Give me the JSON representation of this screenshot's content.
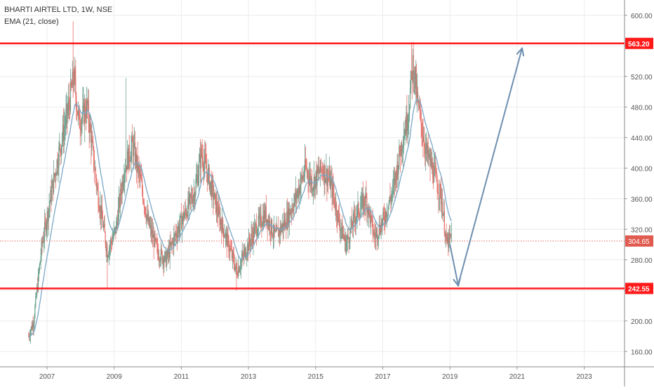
{
  "legend": {
    "title": "BHARTI AIRTEL LTD, 1W, NSE",
    "indicator": "EMA (21, close)"
  },
  "colors": {
    "up": "#6b9e8c",
    "down": "#e7706a",
    "ema": "#7aa7c7",
    "level": "#ff1a1a",
    "arrow": "#6f8fb0",
    "price_line": "#e05a4f",
    "axis_text": "#555555",
    "grid": "#ececec"
  },
  "chart_data": {
    "type": "candlestick",
    "title": "BHARTI AIRTEL LTD, 1W, NSE",
    "indicator": "EMA (21, close)",
    "y_axis": {
      "position": "right",
      "ylim": [
        140,
        620
      ],
      "ticks": [
        "600.00",
        "560.00",
        "520.00",
        "480.00",
        "440.00",
        "400.00",
        "360.00",
        "320.00",
        "280.00",
        "240.00",
        "200.00",
        "160.00"
      ]
    },
    "x_axis": {
      "xlim": [
        2005.6,
        2024.2
      ],
      "ticks": [
        "2007",
        "2009",
        "2011",
        "2013",
        "2015",
        "2017",
        "2019",
        "2021",
        "2023"
      ]
    },
    "grid": true,
    "series_anchor_points": [
      [
        2006.45,
        180
      ],
      [
        2006.6,
        200
      ],
      [
        2006.85,
        300
      ],
      [
        2007.1,
        360
      ],
      [
        2007.35,
        420
      ],
      [
        2007.6,
        470
      ],
      [
        2007.8,
        520
      ],
      [
        2007.95,
        460
      ],
      [
        2008.2,
        480
      ],
      [
        2008.5,
        370
      ],
      [
        2008.8,
        290
      ],
      [
        2009.05,
        320
      ],
      [
        2009.3,
        400
      ],
      [
        2009.55,
        430
      ],
      [
        2009.8,
        380
      ],
      [
        2010.0,
        330
      ],
      [
        2010.3,
        290
      ],
      [
        2010.55,
        280
      ],
      [
        2010.8,
        310
      ],
      [
        2011.1,
        340
      ],
      [
        2011.4,
        370
      ],
      [
        2011.6,
        420
      ],
      [
        2011.8,
        390
      ],
      [
        2012.1,
        340
      ],
      [
        2012.4,
        300
      ],
      [
        2012.65,
        265
      ],
      [
        2012.9,
        290
      ],
      [
        2013.2,
        320
      ],
      [
        2013.5,
        340
      ],
      [
        2013.8,
        310
      ],
      [
        2014.1,
        330
      ],
      [
        2014.4,
        360
      ],
      [
        2014.7,
        400
      ],
      [
        2014.9,
        380
      ],
      [
        2015.2,
        400
      ],
      [
        2015.45,
        380
      ],
      [
        2015.7,
        330
      ],
      [
        2015.9,
        300
      ],
      [
        2016.2,
        340
      ],
      [
        2016.5,
        360
      ],
      [
        2016.75,
        310
      ],
      [
        2017.0,
        330
      ],
      [
        2017.3,
        370
      ],
      [
        2017.55,
        430
      ],
      [
        2017.75,
        470
      ],
      [
        2017.9,
        540
      ],
      [
        2018.05,
        480
      ],
      [
        2018.3,
        420
      ],
      [
        2018.55,
        390
      ],
      [
        2018.75,
        360
      ],
      [
        2018.9,
        300
      ],
      [
        2019.05,
        310
      ]
    ],
    "levels": [
      {
        "value": 563.2,
        "label": "563.20"
      },
      {
        "value": 242.55,
        "label": "242.55"
      }
    ],
    "last_price": {
      "value": 304.65,
      "label": "304.65"
    },
    "projection_arrows": [
      {
        "from": [
          2019.0,
          300
        ],
        "to": [
          2019.25,
          246
        ]
      },
      {
        "from": [
          2019.25,
          248
        ],
        "to": [
          2021.15,
          557
        ]
      }
    ]
  }
}
